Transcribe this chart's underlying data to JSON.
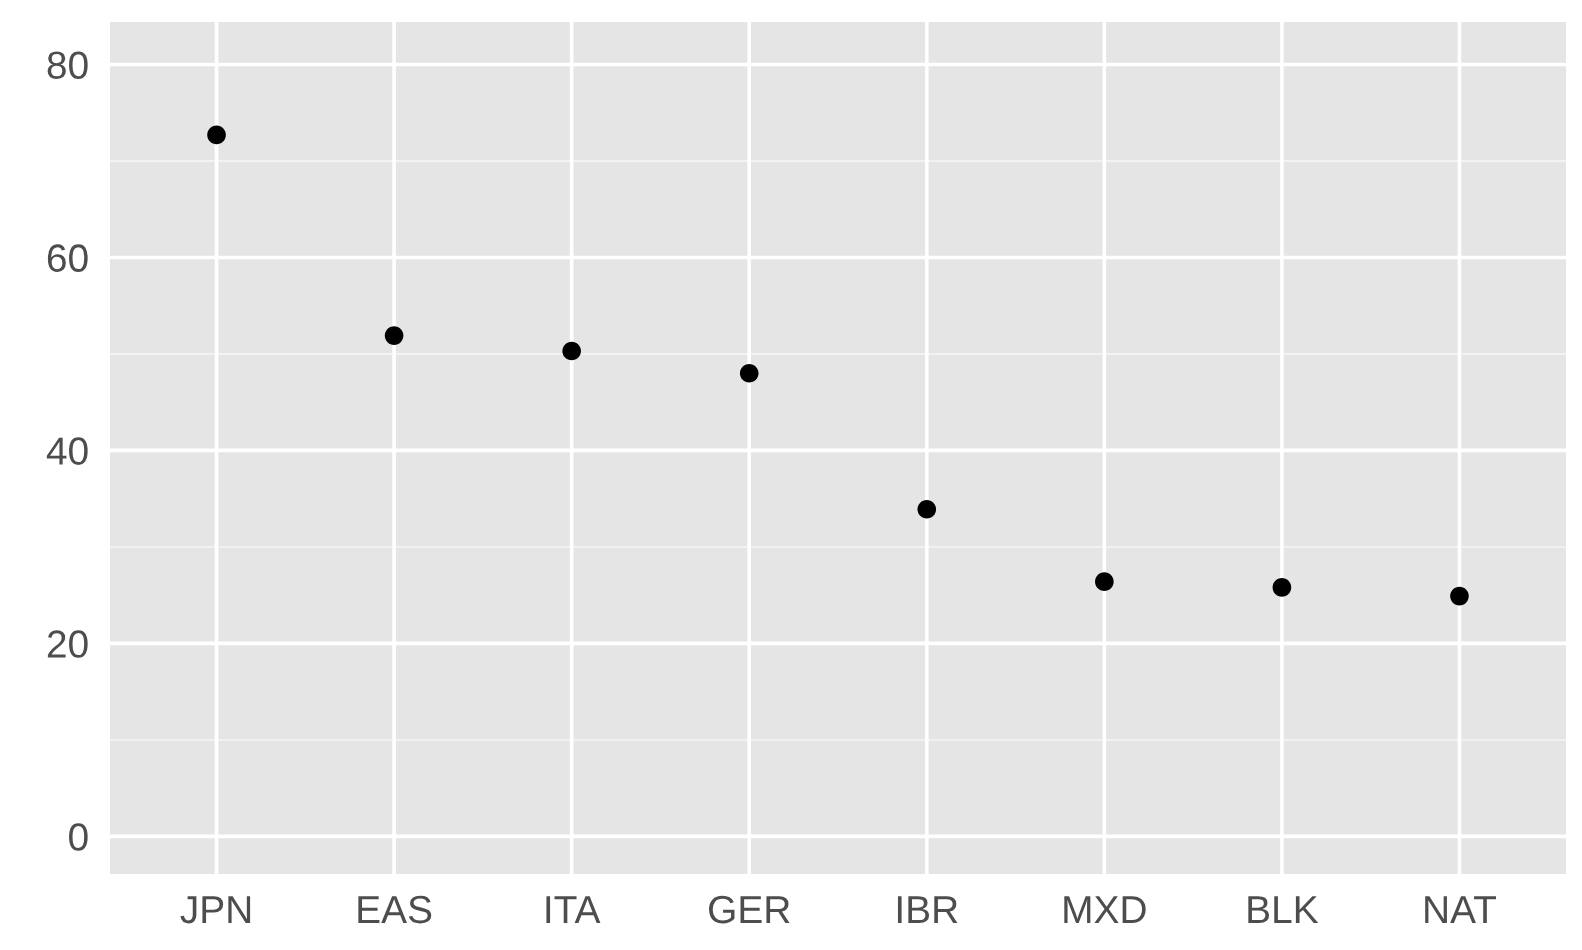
{
  "chart_data": {
    "type": "scatter",
    "categories": [
      "JPN",
      "EAS",
      "ITA",
      "GER",
      "IBR",
      "MXD",
      "BLK",
      "NAT"
    ],
    "values": [
      72.7,
      51.9,
      50.3,
      48.0,
      33.9,
      26.4,
      25.8,
      24.9
    ],
    "color": "#000000",
    "marker": "circle",
    "ylim": [
      -3.9,
      84.4
    ],
    "yticks": [
      0,
      20,
      40,
      60,
      80
    ],
    "grid": true
  }
}
